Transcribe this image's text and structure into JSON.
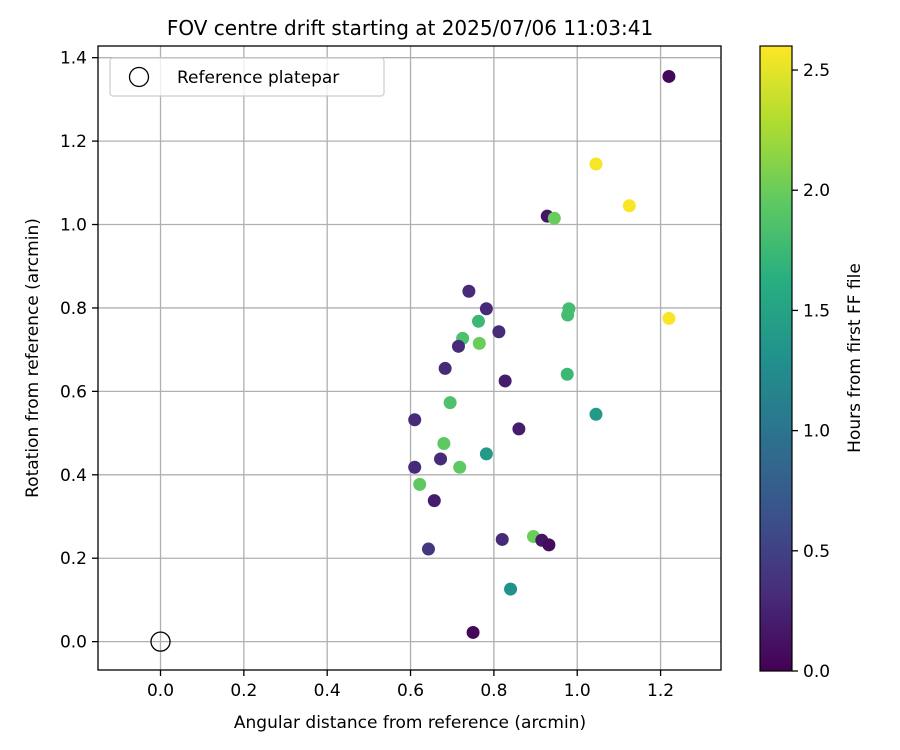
{
  "chart_data": {
    "type": "scatter",
    "title": "FOV centre drift starting at 2025/07/06 11:03:41",
    "xlabel": "Angular distance from reference (arcmin)",
    "ylabel": "Rotation from reference (arcmin)",
    "xlim": [
      -0.15,
      1.345
    ],
    "ylim": [
      -0.068,
      1.428
    ],
    "xticks": [
      0.0,
      0.2,
      0.4,
      0.6,
      0.8,
      1.0,
      1.2
    ],
    "xtick_labels": [
      "0.0",
      "0.2",
      "0.4",
      "0.6",
      "0.8",
      "1.0",
      "1.2"
    ],
    "yticks": [
      0.0,
      0.2,
      0.4,
      0.6,
      0.8,
      1.0,
      1.2,
      1.4
    ],
    "ytick_labels": [
      "0.0",
      "0.2",
      "0.4",
      "0.6",
      "0.8",
      "1.0",
      "1.2",
      "1.4"
    ],
    "grid": true,
    "legend": {
      "placement": "upper-left",
      "entries": [
        "Reference platepar"
      ]
    },
    "reference_point": {
      "x": 0.0,
      "y": 0.0
    },
    "colorbar": {
      "label": "Hours from first FF file",
      "range": [
        0.0,
        2.6
      ],
      "ticks": [
        0.0,
        0.5,
        1.0,
        1.5,
        2.0,
        2.5
      ],
      "tick_labels": [
        "0.0",
        "0.5",
        "1.0",
        "1.5",
        "2.0",
        "2.5"
      ],
      "colormap": "viridis"
    },
    "points": [
      {
        "x": 1.22,
        "y": 1.355,
        "c": 0.05
      },
      {
        "x": 1.045,
        "y": 1.145,
        "c": 2.58
      },
      {
        "x": 1.125,
        "y": 1.045,
        "c": 2.58
      },
      {
        "x": 1.22,
        "y": 0.775,
        "c": 2.58
      },
      {
        "x": 0.928,
        "y": 1.02,
        "c": 0.15
      },
      {
        "x": 0.945,
        "y": 1.015,
        "c": 2.0
      },
      {
        "x": 0.74,
        "y": 0.84,
        "c": 0.3
      },
      {
        "x": 0.782,
        "y": 0.798,
        "c": 0.3
      },
      {
        "x": 0.98,
        "y": 0.798,
        "c": 1.8
      },
      {
        "x": 0.977,
        "y": 0.783,
        "c": 1.8
      },
      {
        "x": 0.763,
        "y": 0.768,
        "c": 1.75
      },
      {
        "x": 0.812,
        "y": 0.743,
        "c": 0.3
      },
      {
        "x": 0.725,
        "y": 0.727,
        "c": 1.85
      },
      {
        "x": 0.715,
        "y": 0.708,
        "c": 0.3
      },
      {
        "x": 0.765,
        "y": 0.715,
        "c": 2.0
      },
      {
        "x": 0.683,
        "y": 0.655,
        "c": 0.3
      },
      {
        "x": 0.976,
        "y": 0.641,
        "c": 1.75
      },
      {
        "x": 0.827,
        "y": 0.625,
        "c": 0.2
      },
      {
        "x": 0.695,
        "y": 0.573,
        "c": 1.85
      },
      {
        "x": 1.045,
        "y": 0.545,
        "c": 1.4
      },
      {
        "x": 0.61,
        "y": 0.532,
        "c": 0.3
      },
      {
        "x": 0.86,
        "y": 0.51,
        "c": 0.2
      },
      {
        "x": 0.68,
        "y": 0.475,
        "c": 1.95
      },
      {
        "x": 0.782,
        "y": 0.45,
        "c": 1.4
      },
      {
        "x": 0.672,
        "y": 0.438,
        "c": 0.3
      },
      {
        "x": 0.61,
        "y": 0.418,
        "c": 0.3
      },
      {
        "x": 0.718,
        "y": 0.418,
        "c": 1.95
      },
      {
        "x": 0.622,
        "y": 0.377,
        "c": 1.95
      },
      {
        "x": 0.657,
        "y": 0.338,
        "c": 0.2
      },
      {
        "x": 0.895,
        "y": 0.252,
        "c": 2.0
      },
      {
        "x": 0.82,
        "y": 0.245,
        "c": 0.3
      },
      {
        "x": 0.915,
        "y": 0.243,
        "c": 0.15
      },
      {
        "x": 0.932,
        "y": 0.232,
        "c": 0.08
      },
      {
        "x": 0.643,
        "y": 0.222,
        "c": 0.4
      },
      {
        "x": 0.84,
        "y": 0.126,
        "c": 1.3
      },
      {
        "x": 0.75,
        "y": 0.022,
        "c": 0.05
      }
    ]
  }
}
